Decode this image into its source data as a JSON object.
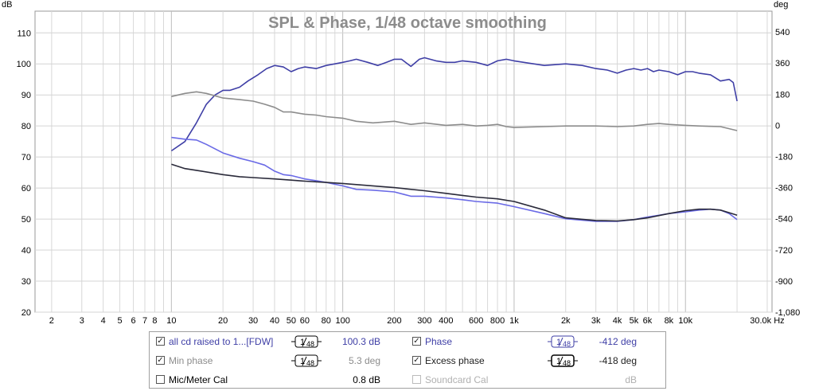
{
  "chart_data": {
    "type": "line",
    "title": "SPL & Phase, 1/48 octave smoothing",
    "y_left_unit": "dB",
    "y_right_unit": "deg",
    "x_unit": "Hz",
    "x_scale": "log",
    "xlim": [
      1.6,
      32000
    ],
    "ylim": [
      20,
      117
    ],
    "y_right_lim": [
      -1080,
      660
    ],
    "grid": true,
    "x_tick_labels": [
      {
        "f": 2,
        "label": "2"
      },
      {
        "f": 3,
        "label": "3"
      },
      {
        "f": 4,
        "label": "4"
      },
      {
        "f": 5,
        "label": "5"
      },
      {
        "f": 6,
        "label": "6"
      },
      {
        "f": 7,
        "label": "7"
      },
      {
        "f": 8,
        "label": "8"
      },
      {
        "f": 10,
        "label": "10"
      },
      {
        "f": 20,
        "label": "20"
      },
      {
        "f": 30,
        "label": "30"
      },
      {
        "f": 40,
        "label": "40"
      },
      {
        "f": 50,
        "label": "50"
      },
      {
        "f": 60,
        "label": "60"
      },
      {
        "f": 80,
        "label": "80"
      },
      {
        "f": 100,
        "label": "100"
      },
      {
        "f": 200,
        "label": "200"
      },
      {
        "f": 300,
        "label": "300"
      },
      {
        "f": 400,
        "label": "400"
      },
      {
        "f": 600,
        "label": "600"
      },
      {
        "f": 800,
        "label": "800"
      },
      {
        "f": 1000,
        "label": "1k"
      },
      {
        "f": 2000,
        "label": "2k"
      },
      {
        "f": 3000,
        "label": "3k"
      },
      {
        "f": 4000,
        "label": "4k"
      },
      {
        "f": 5000,
        "label": "5k"
      },
      {
        "f": 6000,
        "label": "6k"
      },
      {
        "f": 8000,
        "label": "8k"
      },
      {
        "f": 10000,
        "label": "10k"
      },
      {
        "f": 30000,
        "label": "30.0k Hz"
      }
    ],
    "y_left_ticks": [
      20,
      30,
      40,
      50,
      60,
      70,
      80,
      90,
      100,
      110
    ],
    "y_right_ticks": [
      {
        "v": 540,
        "label": "540"
      },
      {
        "v": 360,
        "label": "360"
      },
      {
        "v": 180,
        "label": "180"
      },
      {
        "v": 0,
        "label": "0"
      },
      {
        "v": -180,
        "label": "-180"
      },
      {
        "v": -360,
        "label": "-360"
      },
      {
        "v": -540,
        "label": "-540"
      },
      {
        "v": -720,
        "label": "-720"
      },
      {
        "v": -900,
        "label": "-900"
      },
      {
        "v": -1080,
        "label": "-1,080"
      }
    ],
    "series": [
      {
        "name": "all cd raised to 1...[FDW]",
        "axis": "left",
        "color": "#3f3fa6",
        "x": [
          10,
          12,
          14,
          16,
          18,
          20,
          22,
          25,
          28,
          32,
          36,
          40,
          45,
          50,
          55,
          60,
          70,
          80,
          90,
          100,
          110,
          120,
          140,
          160,
          180,
          200,
          220,
          250,
          280,
          300,
          350,
          400,
          450,
          500,
          600,
          700,
          800,
          900,
          1000,
          1200,
          1500,
          2000,
          2500,
          3000,
          3500,
          4000,
          4500,
          5000,
          5500,
          6000,
          6500,
          7000,
          8000,
          9000,
          10000,
          11000,
          12000,
          14000,
          16000,
          18000,
          19000,
          20000
        ],
        "y": [
          72,
          75,
          81,
          87,
          90,
          91.5,
          91.5,
          92.5,
          94.5,
          96.5,
          98.5,
          99.5,
          99,
          97.5,
          98.5,
          99,
          98.5,
          99.5,
          100,
          100.5,
          101,
          101.5,
          100.5,
          99.5,
          100.5,
          101.5,
          101.5,
          99.2,
          101.5,
          102,
          101,
          100.5,
          100.5,
          101,
          100.5,
          99.5,
          101,
          101.5,
          101,
          100.3,
          99.5,
          100,
          99.5,
          98.5,
          98,
          97,
          98,
          98.5,
          98,
          98.5,
          97.5,
          98,
          97.5,
          96.5,
          97.5,
          97.5,
          97,
          96.5,
          94.5,
          95,
          94,
          88
        ]
      },
      {
        "name": "Min phase",
        "axis": "left",
        "color": "#8c8c8c",
        "x": [
          10,
          12,
          14,
          16,
          20,
          25,
          30,
          35,
          40,
          45,
          50,
          60,
          70,
          80,
          100,
          120,
          150,
          200,
          250,
          300,
          400,
          500,
          600,
          700,
          800,
          900,
          1000,
          1500,
          2000,
          3000,
          4000,
          5000,
          6000,
          7000,
          8000,
          10000,
          12000,
          16000,
          20000
        ],
        "y": [
          89.5,
          90.5,
          91,
          90.5,
          89,
          88.5,
          88,
          87,
          86,
          84.5,
          84.5,
          83.8,
          83.5,
          83,
          82.5,
          81.5,
          81,
          81.5,
          80.5,
          81,
          80.2,
          80.5,
          80,
          80.2,
          80.5,
          79.8,
          79.5,
          79.8,
          80,
          80,
          79.8,
          80,
          80.5,
          80.8,
          80.5,
          80.2,
          80,
          79.8,
          78.5
        ]
      },
      {
        "name": "Phase",
        "axis": "right",
        "color": "#6a6ae6",
        "x": [
          10,
          12,
          14,
          16,
          20,
          25,
          30,
          35,
          40,
          45,
          50,
          60,
          70,
          80,
          100,
          120,
          150,
          200,
          250,
          300,
          400,
          500,
          600,
          800,
          1000,
          1500,
          2000,
          3000,
          4000,
          5000,
          6000,
          7000,
          8000,
          10000,
          12000,
          14000,
          16000,
          18000,
          20000
        ],
        "y": [
          -70,
          -80,
          -85,
          -110,
          -160,
          -190,
          -210,
          -230,
          -265,
          -285,
          -290,
          -310,
          -320,
          -330,
          -350,
          -370,
          -375,
          -385,
          -410,
          -410,
          -420,
          -430,
          -440,
          -450,
          -470,
          -510,
          -540,
          -555,
          -555,
          -545,
          -530,
          -520,
          -510,
          -500,
          -490,
          -485,
          -490,
          -510,
          -545
        ]
      },
      {
        "name": "Excess phase",
        "axis": "right",
        "color": "#2a2a3a",
        "x": [
          10,
          12,
          15,
          20,
          25,
          30,
          40,
          50,
          60,
          80,
          100,
          150,
          200,
          300,
          400,
          500,
          600,
          800,
          1000,
          1500,
          2000,
          3000,
          4000,
          5000,
          6000,
          8000,
          10000,
          12000,
          14000,
          16000,
          18000,
          20000
        ],
        "y": [
          -225,
          -250,
          -265,
          -285,
          -297,
          -302,
          -310,
          -317,
          -323,
          -330,
          -336,
          -350,
          -360,
          -378,
          -393,
          -405,
          -415,
          -425,
          -440,
          -490,
          -535,
          -550,
          -553,
          -545,
          -535,
          -510,
          -493,
          -485,
          -485,
          -490,
          -505,
          -520
        ]
      }
    ]
  },
  "legend": {
    "rows": [
      {
        "left": {
          "checked": true,
          "label": "all cd raised to 1...[FDW]",
          "smoothing": "1/48",
          "value": "100.3 dB",
          "color": "#3f3fa6"
        },
        "right": {
          "checked": true,
          "label": "Phase",
          "smoothing": "1/48",
          "value": "-412 deg",
          "color": "#3f3fa6"
        }
      },
      {
        "left": {
          "checked": true,
          "label": "Min phase",
          "smoothing": "1/48",
          "value": "5.3 deg",
          "color": "#8c8c8c"
        },
        "right": {
          "checked": true,
          "label": "Excess phase",
          "smoothing": "1/48",
          "value": "-418 deg",
          "color": "#222222"
        }
      },
      {
        "left": {
          "checked": false,
          "label": "Mic/Meter Cal",
          "value": "0.8 dB",
          "color": "#000000"
        },
        "right": {
          "checked": false,
          "label": "Soundcard Cal",
          "value": "dB",
          "color": "#b0b0b0"
        }
      }
    ]
  }
}
